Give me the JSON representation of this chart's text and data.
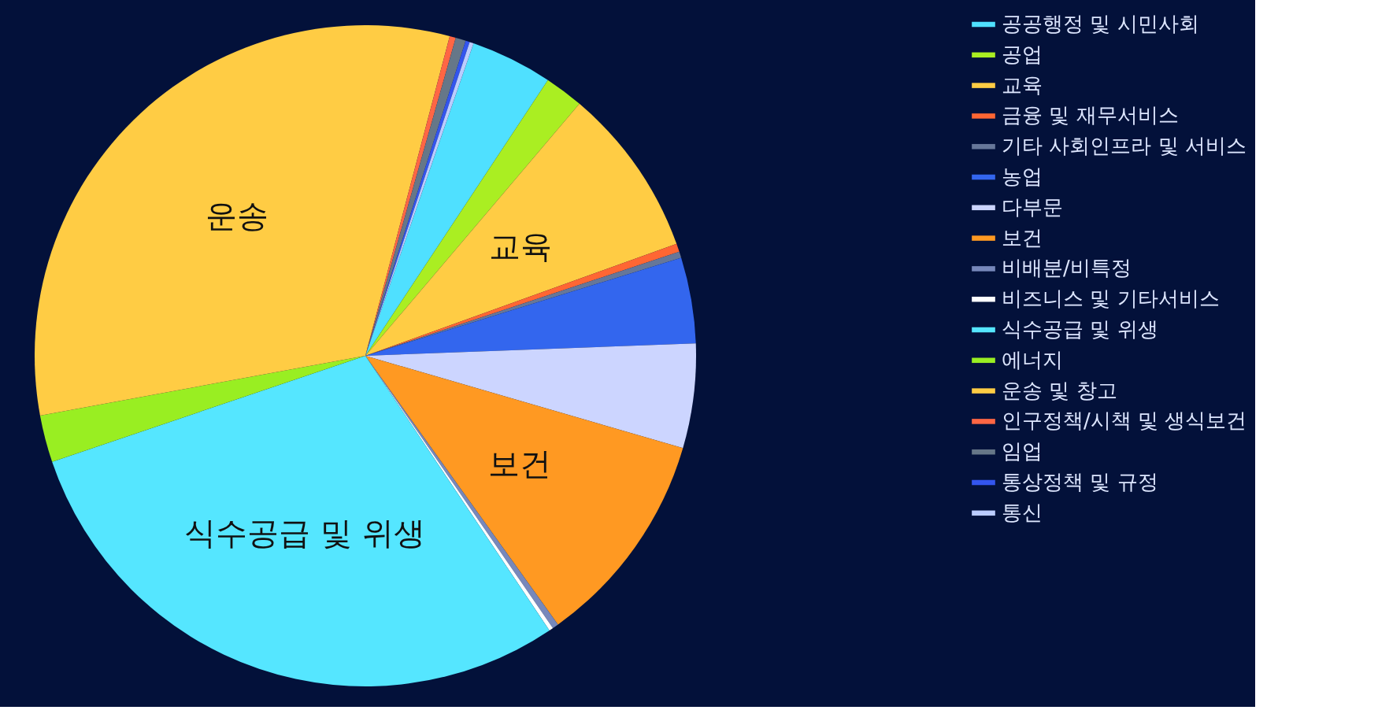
{
  "chart_data": {
    "type": "pie",
    "legend": "right",
    "categories": [
      "공공행정 및 시민사회",
      "공업",
      "교육",
      "금융 및 재무서비스",
      "기타 사회인프라 및 서비스",
      "농업",
      "다부문",
      "보건",
      "비배분/비특정",
      "비즈니스 및 기타서비스",
      "식수공급 및 위생",
      "에너지",
      "운송 및 창고",
      "인구정책/시책 및 생식보건",
      "임업",
      "통상정책 및 규정",
      "통신"
    ],
    "values": [
      4.0,
      1.9,
      8.3,
      0.4,
      0.3,
      4.2,
      5.1,
      10.6,
      0.3,
      0.2,
      29.2,
      2.3,
      32.0,
      0.3,
      0.5,
      0.2,
      0.2
    ],
    "colors": [
      "#4fe0ff",
      "#aaee22",
      "#ffcc44",
      "#ff6633",
      "#667799",
      "#3366ee",
      "#ccd5ff",
      "#ff9922",
      "#7788bb",
      "#ffffff",
      "#55e6ff",
      "#99ee22",
      "#ffcc44",
      "#ff6644",
      "#667788",
      "#3355ee",
      "#bbccff"
    ],
    "annotations": [
      {
        "text": "교육",
        "x": "교육"
      },
      {
        "text": "보건",
        "x": "보건"
      },
      {
        "text": "식수공급 및 위생",
        "x": "식수공급 및 위생"
      },
      {
        "text": "운송",
        "x": "운송 및 창고"
      }
    ]
  }
}
